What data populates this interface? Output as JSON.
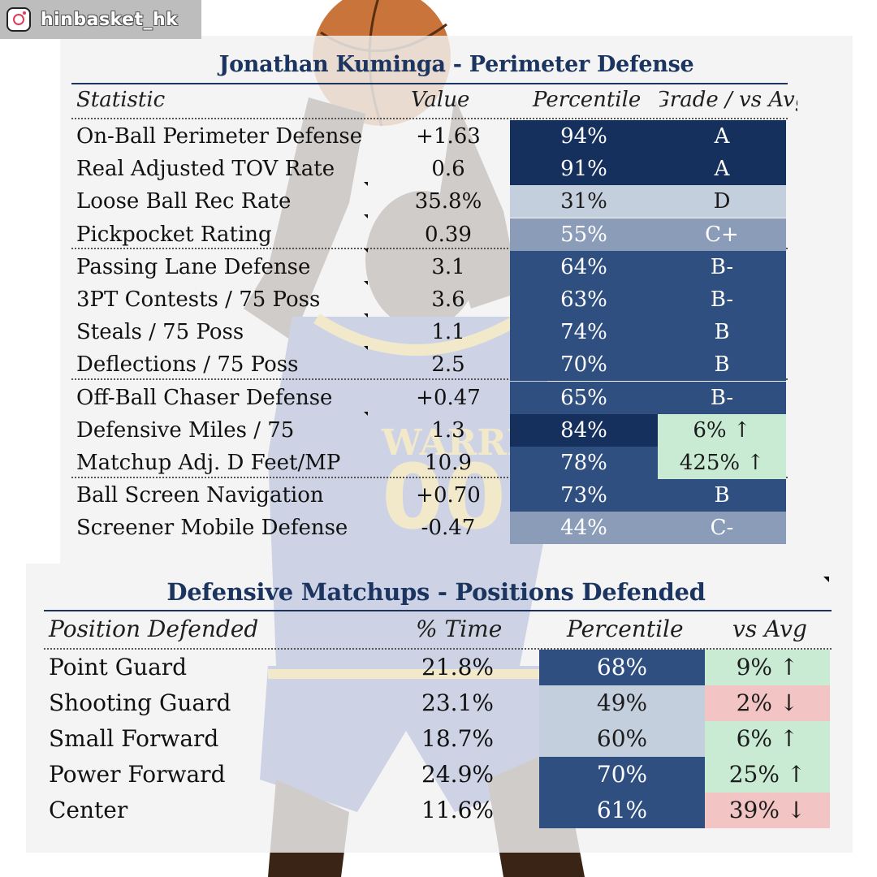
{
  "instagram": {
    "handle": "hinbasket_hk"
  },
  "colors": {
    "dark_navy": "#16305e",
    "mid_blue": "#2f4f80",
    "light_blue": "#8a9cb8",
    "pale_blue": "#c4cfde",
    "green": "#c9ebd4",
    "red": "#f2c4c4",
    "title": "#1b3560"
  },
  "perimeter": {
    "title": "Jonathan Kuminga - Perimeter Defense",
    "headers": [
      "Statistic",
      "Value",
      "Percentile",
      "Grade / vs Avg"
    ],
    "rows": [
      {
        "stat": "On-Ball Perimeter Defense",
        "value": "+1.63",
        "percentile": "94%",
        "grade": "A"
      },
      {
        "stat": "Real Adjusted TOV Rate",
        "value": "0.6",
        "percentile": "91%",
        "grade": "A"
      },
      {
        "stat": "Loose Ball Rec Rate",
        "value": "35.8%",
        "percentile": "31%",
        "grade": "D"
      },
      {
        "stat": "Pickpocket Rating",
        "value": "0.39",
        "percentile": "55%",
        "grade": "C+"
      },
      {
        "stat": "Passing Lane Defense",
        "value": "3.1",
        "percentile": "64%",
        "grade": "B-"
      },
      {
        "stat": "3PT Contests / 75 Poss",
        "value": "3.6",
        "percentile": "63%",
        "grade": "B-"
      },
      {
        "stat": "Steals / 75 Poss",
        "value": "1.1",
        "percentile": "74%",
        "grade": "B"
      },
      {
        "stat": "Deflections / 75 Poss",
        "value": "2.5",
        "percentile": "70%",
        "grade": "B"
      },
      {
        "stat": "Off-Ball Chaser Defense",
        "value": "+0.47",
        "percentile": "65%",
        "grade": "B-"
      },
      {
        "stat": "Defensive Miles / 75",
        "value": "1.3",
        "percentile": "84%",
        "grade": "6% ↑"
      },
      {
        "stat": "Matchup Adj. D Feet/MP",
        "value": "10.9",
        "percentile": "78%",
        "grade": "425% ↑"
      },
      {
        "stat": "Ball Screen Navigation",
        "value": "+0.70",
        "percentile": "73%",
        "grade": "B"
      },
      {
        "stat": "Screener Mobile Defense",
        "value": "-0.47",
        "percentile": "44%",
        "grade": "C-"
      }
    ]
  },
  "matchups": {
    "title": "Defensive Matchups - Positions Defended",
    "headers": [
      "Position Defended",
      "% Time",
      "Percentile",
      "vs Avg"
    ],
    "rows": [
      {
        "position": "Point Guard",
        "time": "21.8%",
        "percentile": "68%",
        "vs_avg": "9% ↑"
      },
      {
        "position": "Shooting Guard",
        "time": "23.1%",
        "percentile": "49%",
        "vs_avg": "2% ↓"
      },
      {
        "position": "Small Forward",
        "time": "18.7%",
        "percentile": "60%",
        "vs_avg": "6% ↑"
      },
      {
        "position": "Power Forward",
        "time": "24.9%",
        "percentile": "70%",
        "vs_avg": "25% ↑"
      },
      {
        "position": "Center",
        "time": "11.6%",
        "percentile": "61%",
        "vs_avg": "39% ↓"
      }
    ]
  }
}
